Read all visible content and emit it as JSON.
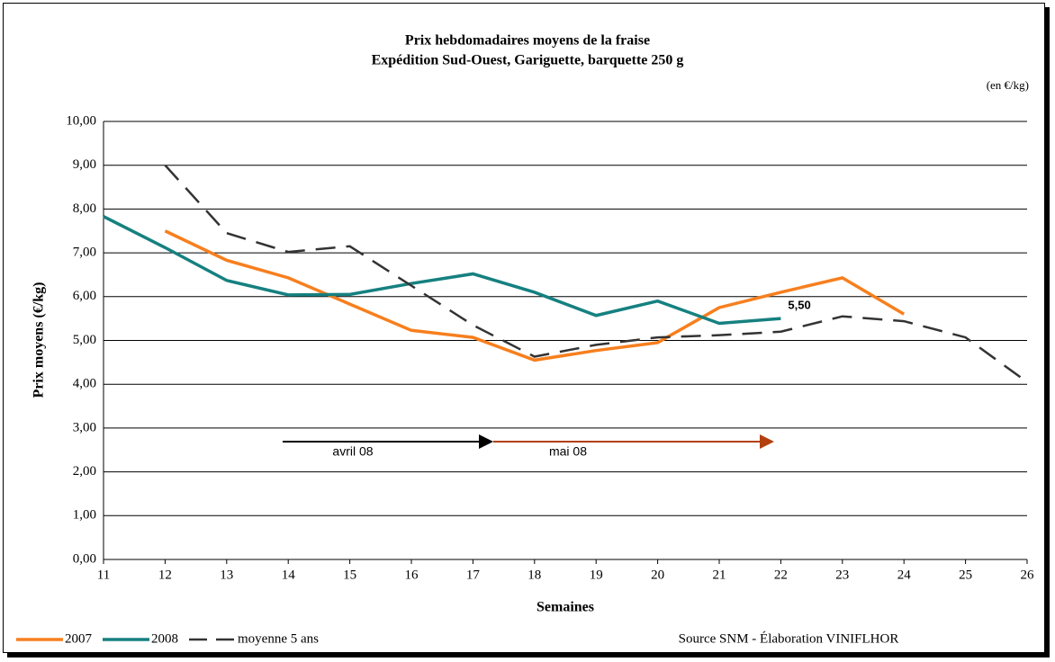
{
  "chart_data": {
    "type": "line",
    "title": "Prix hebdomadaires moyens de la fraise",
    "subtitle": "Expédition Sud-Ouest, Gariguette, barquette 250 g",
    "unit_note": "(en €/kg)",
    "x_label": "Semaines",
    "y_label": "Prix moyens (€/kg)",
    "source": "Source SNM - Élaboration VINIFLHOR",
    "annotations": [
      "avril 08",
      "mai 08"
    ],
    "xlim": [
      11,
      26
    ],
    "xticks": [
      11,
      12,
      13,
      14,
      15,
      16,
      17,
      18,
      19,
      20,
      21,
      22,
      23,
      24,
      25,
      26
    ],
    "ylim": [
      0,
      10
    ],
    "yticks": [
      {
        "value": 0,
        "label": "0,00"
      },
      {
        "value": 1,
        "label": "1,00"
      },
      {
        "value": 2,
        "label": "2,00"
      },
      {
        "value": 3,
        "label": "3,00"
      },
      {
        "value": 4,
        "label": "4,00"
      },
      {
        "value": 5,
        "label": "5,00"
      },
      {
        "value": 6,
        "label": "6,00"
      },
      {
        "value": 7,
        "label": "7,00"
      },
      {
        "value": 8,
        "label": "8,00"
      },
      {
        "value": 9,
        "label": "9,00"
      },
      {
        "value": 10,
        "label": "10,00"
      }
    ],
    "grid": true,
    "series": [
      {
        "name": "2007",
        "color": "#f77f1e",
        "dashed": false,
        "x": [
          12,
          13,
          14,
          15,
          16,
          17,
          18,
          19,
          20,
          21,
          22,
          23,
          24
        ],
        "values": [
          7.5,
          6.83,
          6.43,
          5.83,
          5.23,
          5.07,
          4.55,
          4.77,
          4.95,
          5.75,
          6.1,
          6.43,
          5.6
        ]
      },
      {
        "name": "2008",
        "color": "#168080",
        "dashed": false,
        "x": [
          11,
          12,
          13,
          14,
          15,
          16,
          17,
          18,
          19,
          20,
          21,
          22
        ],
        "values": [
          7.83,
          7.12,
          6.37,
          6.04,
          6.05,
          6.3,
          6.52,
          6.1,
          5.57,
          5.9,
          5.39,
          5.5
        ],
        "value_labels": [
          null,
          null,
          null,
          null,
          null,
          null,
          null,
          null,
          null,
          null,
          null,
          "5,50"
        ]
      },
      {
        "name": "moyenne 5 ans",
        "color": "#333333",
        "dashed": true,
        "x": [
          12,
          13,
          14,
          15,
          16,
          17,
          18,
          19,
          20,
          21,
          22,
          23,
          24,
          25,
          26
        ],
        "values": [
          9.0,
          7.45,
          7.02,
          7.15,
          6.25,
          5.35,
          4.63,
          4.9,
          5.07,
          5.12,
          5.2,
          5.55,
          5.44,
          5.07,
          4.05
        ]
      }
    ]
  }
}
